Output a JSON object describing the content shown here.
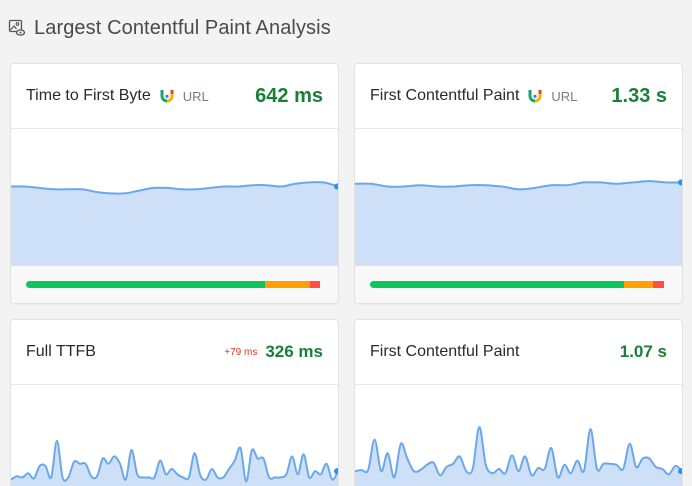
{
  "header": {
    "title": "Largest Contentful Paint Analysis",
    "icon": "image-analysis-icon"
  },
  "colors": {
    "good": "#0ec45c",
    "needs_improvement": "#ff9f00",
    "poor": "#ff4e42",
    "value_green": "#188038",
    "delta_red": "#e0352b",
    "line": "#6aa8e8",
    "fill": "#cde0f7"
  },
  "cards": [
    {
      "label": "Time to First Byte",
      "source_icon": "crux-logo-icon",
      "source_label": "URL",
      "value": "642 ms",
      "distribution": {
        "good": 80.4,
        "needs_improvement": 15.3,
        "poor": 3.3
      }
    },
    {
      "label": "First Contentful Paint",
      "source_icon": "crux-logo-icon",
      "source_label": "URL",
      "value": "1.33 s",
      "distribution": {
        "good": 85.5,
        "needs_improvement": 9.7,
        "poor": 3.8
      }
    },
    {
      "label": "Full TTFB",
      "delta": "+79 ms",
      "value": "326 ms"
    },
    {
      "label": "First Contentful Paint",
      "value": "1.07 s"
    }
  ],
  "chart_data": [
    {
      "type": "area",
      "title": "Time to First Byte",
      "values": [
        58,
        58,
        57,
        56,
        56,
        56,
        54,
        53,
        53,
        55,
        57,
        57,
        56,
        56,
        57,
        58,
        58,
        59,
        59,
        58,
        60,
        61,
        61,
        58
      ]
    },
    {
      "type": "area",
      "title": "First Contentful Paint",
      "values": [
        60,
        60,
        58,
        58,
        59,
        58,
        58,
        59,
        59,
        58,
        56,
        57,
        59,
        59,
        61,
        61,
        60,
        61,
        62,
        61,
        61
      ]
    },
    {
      "type": "area",
      "title": "Full TTFB",
      "values": [
        10,
        13,
        12,
        16,
        11,
        23,
        23,
        12,
        47,
        12,
        12,
        27,
        25,
        25,
        13,
        13,
        30,
        25,
        32,
        25,
        10,
        38,
        15,
        12,
        12,
        12,
        28,
        15,
        20,
        15,
        12,
        12,
        35,
        14,
        10,
        20,
        12,
        12,
        20,
        28,
        40,
        8,
        38,
        30,
        30,
        12,
        12,
        12,
        15,
        32,
        15,
        34,
        12,
        18,
        15,
        25,
        10,
        18
      ]
    },
    {
      "type": "area",
      "title": "First Contentful Paint",
      "values": [
        18,
        19,
        19,
        48,
        18,
        35,
        12,
        44,
        30,
        18,
        19,
        24,
        26,
        14,
        22,
        25,
        32,
        18,
        20,
        60,
        24,
        16,
        20,
        16,
        33,
        18,
        32,
        14,
        21,
        20,
        40,
        12,
        24,
        16,
        28,
        18,
        58,
        20,
        25,
        25,
        24,
        20,
        44,
        22,
        30,
        30,
        22,
        20,
        15,
        23,
        18
      ]
    }
  ]
}
